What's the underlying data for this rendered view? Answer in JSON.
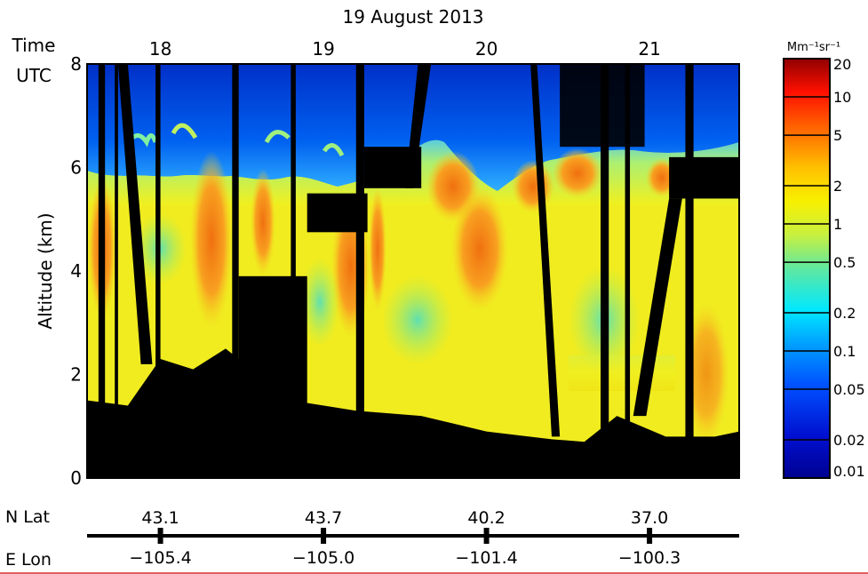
{
  "chart_data": {
    "type": "heatmap",
    "title": "19 August 2013",
    "time_label_1": "Time",
    "time_label_2": "UTC",
    "ylabel": "Altitude (km)",
    "ylim": [
      0,
      8
    ],
    "yticks": [
      "0",
      "2",
      "4",
      "6",
      "8"
    ],
    "x_tick_labels": [
      "18",
      "19",
      "20",
      "21"
    ],
    "x_ticks_hours": [
      18,
      19,
      20,
      21
    ],
    "xlim_hours": [
      17.55,
      21.55
    ],
    "colorbar": {
      "unit_label": "Mm⁻¹sr⁻¹",
      "scale": "log",
      "range": [
        0.01,
        20
      ],
      "tick_labels": [
        "20",
        "10",
        "5",
        "2",
        "1",
        "0.5",
        "0.2",
        "0.1",
        "0.05",
        "0.02",
        "0.01"
      ],
      "tick_values": [
        20,
        10,
        5,
        2,
        1,
        0.5,
        0.2,
        0.1,
        0.05,
        0.02,
        0.01
      ]
    },
    "position_axis": {
      "lat_label": "N Lat",
      "lon_label": "E Lon",
      "lat_values": [
        "43.1",
        "43.7",
        "40.2",
        "37.0"
      ],
      "lon_values": [
        "−105.4",
        "−105.0",
        "−101.4",
        "−100.3"
      ]
    },
    "terrain_km": [
      [
        17.55,
        1.5
      ],
      [
        17.8,
        1.4
      ],
      [
        18.0,
        2.3
      ],
      [
        18.2,
        2.1
      ],
      [
        18.4,
        2.5
      ],
      [
        18.6,
        2.0
      ],
      [
        18.8,
        1.5
      ],
      [
        19.2,
        1.3
      ],
      [
        19.6,
        1.2
      ],
      [
        20.0,
        0.9
      ],
      [
        20.4,
        0.75
      ],
      [
        20.6,
        0.7
      ],
      [
        20.8,
        1.2
      ],
      [
        21.1,
        0.8
      ],
      [
        21.4,
        0.8
      ],
      [
        21.55,
        0.9
      ]
    ],
    "data_gaps": [
      {
        "t0": 17.62,
        "t1": 17.66,
        "bottom": 0,
        "top": 8
      },
      {
        "t0": 17.72,
        "t1": 17.74,
        "bottom": 0,
        "top": 8
      },
      {
        "t0": 17.97,
        "t1": 18.0,
        "bottom": 0,
        "top": 8
      },
      {
        "t0": 18.44,
        "t1": 18.48,
        "bottom": 0,
        "top": 8
      },
      {
        "t0": 18.48,
        "t1": 18.9,
        "bottom": 0,
        "top": 3.9
      },
      {
        "t0": 18.8,
        "t1": 18.83,
        "bottom": 0,
        "top": 8
      },
      {
        "t0": 18.9,
        "t1": 19.27,
        "bottom": 4.75,
        "top": 5.5
      },
      {
        "t0": 19.2,
        "t1": 19.25,
        "bottom": 0,
        "top": 8
      },
      {
        "t0": 19.25,
        "t1": 19.6,
        "bottom": 5.6,
        "top": 6.4
      },
      {
        "t0": 20.7,
        "t1": 20.75,
        "bottom": 0,
        "top": 8
      },
      {
        "t0": 20.85,
        "t1": 20.88,
        "bottom": 0,
        "top": 8
      },
      {
        "t0": 21.12,
        "t1": 21.55,
        "bottom": 5.4,
        "top": 6.2
      },
      {
        "t0": 21.22,
        "t1": 21.27,
        "bottom": 0,
        "top": 8
      }
    ]
  }
}
